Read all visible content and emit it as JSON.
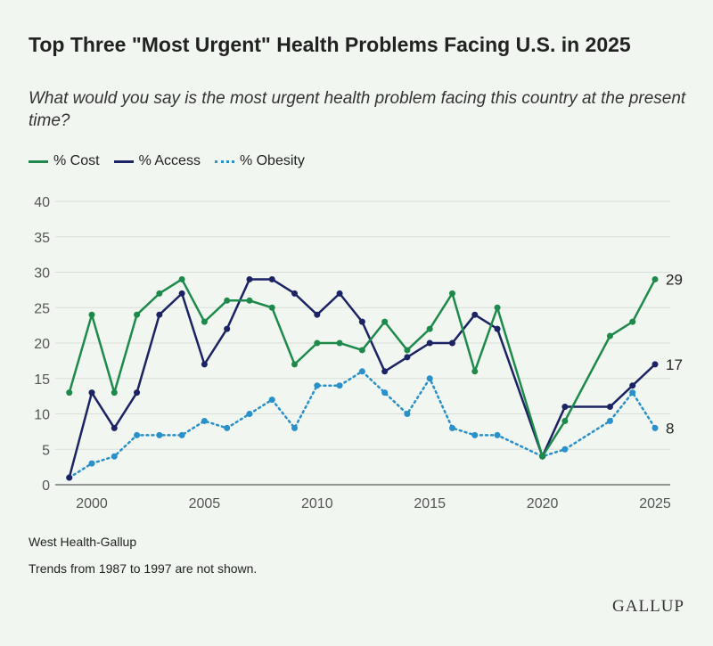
{
  "chart_data": {
    "type": "line",
    "title": "Top Three \"Most Urgent\" Health Problems Facing U.S. in 2025",
    "subtitle": "What would you say is the most urgent health problem facing this country at the present time?",
    "ylim": [
      0,
      40
    ],
    "yticks": [
      "0",
      "5",
      "10",
      "15",
      "20",
      "25",
      "30",
      "35",
      "40"
    ],
    "xticks": [
      "2000",
      "2005",
      "2010",
      "2015",
      "2020",
      "2025"
    ],
    "grid": true,
    "legend_position": "top-left",
    "x": [
      1999,
      2000,
      2001,
      2002,
      2003,
      2004,
      2005,
      2006,
      2007,
      2008,
      2009,
      2010,
      2011,
      2012,
      2013,
      2014,
      2015,
      2016,
      2017,
      2018,
      2020,
      2021,
      2023,
      2024,
      2025
    ],
    "series": [
      {
        "name": "% Cost",
        "color": "#1d8a4b",
        "style": "solid",
        "values": [
          13,
          24,
          13,
          24,
          27,
          29,
          23,
          26,
          26,
          25,
          17,
          20,
          20,
          19,
          23,
          19,
          22,
          27,
          16,
          25,
          4,
          9,
          21,
          23,
          29
        ],
        "end_label": "29"
      },
      {
        "name": "% Access",
        "color": "#1b2364",
        "style": "solid",
        "values": [
          1,
          13,
          8,
          13,
          24,
          27,
          17,
          22,
          29,
          29,
          27,
          24,
          27,
          23,
          16,
          18,
          20,
          20,
          24,
          22,
          4,
          11,
          11,
          14,
          17
        ],
        "end_label": "17"
      },
      {
        "name": "% Obesity",
        "color": "#2a90c9",
        "style": "dotted",
        "values": [
          1,
          3,
          4,
          7,
          7,
          7,
          9,
          8,
          10,
          12,
          8,
          14,
          14,
          16,
          13,
          10,
          15,
          8,
          7,
          7,
          4,
          5,
          9,
          13,
          8
        ],
        "end_label": "8"
      }
    ]
  },
  "source": "West Health-Gallup",
  "note": "Trends from 1987 to 1997 are not shown.",
  "logo": "GALLUP"
}
